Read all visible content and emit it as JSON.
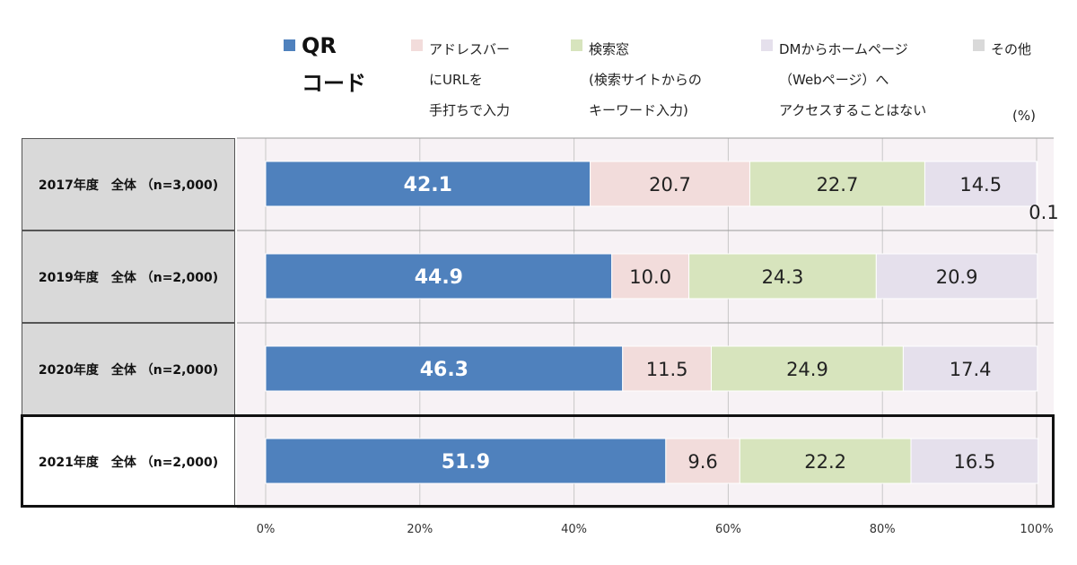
{
  "chart_data": {
    "type": "bar",
    "orientation": "horizontal",
    "stacked": true,
    "categories": [
      "2017年度　全体 （n=3,000)",
      "2019年度　全体 （n=2,000)",
      "2020年度　全体 （n=2,000)",
      "2021年度　全体 （n=2,000)"
    ],
    "highlighted_category_index": 3,
    "unit": "(%)",
    "xlim": [
      0,
      100
    ],
    "x_ticks": [
      "0%",
      "20%",
      "40%",
      "60%",
      "80%",
      "100%"
    ],
    "grid": true,
    "legend_position": "top",
    "series": [
      {
        "name": "QR\nコード",
        "color": "#4f81bd",
        "label_color": "#ffffff",
        "values": [
          42.1,
          44.9,
          46.3,
          51.9
        ],
        "labels": [
          "42.1",
          "44.9",
          "46.3",
          "51.9"
        ]
      },
      {
        "name": "アドレスバー\nにURLを\n手打ちで入力",
        "color": "#f2dcdb",
        "label_color": "#222222",
        "values": [
          20.7,
          10.0,
          11.5,
          9.6
        ],
        "labels": [
          "20.7",
          "10.0",
          "11.5",
          "9.6"
        ]
      },
      {
        "name": "検索窓\n(検索サイトからの\nキーワード入力)",
        "color": "#d7e4bd",
        "label_color": "#222222",
        "values": [
          22.7,
          24.3,
          24.9,
          22.2
        ],
        "labels": [
          "22.7",
          "24.3",
          "24.9",
          "22.2"
        ]
      },
      {
        "name": "DMからホームページ\n（Webページ）へ\nアクセスすることはない",
        "color": "#e5e0ec",
        "label_color": "#222222",
        "values": [
          14.5,
          20.9,
          17.4,
          16.5
        ],
        "labels": [
          "14.5",
          "20.9",
          "17.4",
          "16.5"
        ]
      },
      {
        "name": "その他",
        "color": "#d9d9d9",
        "label_color": "#222222",
        "values": [
          0.1,
          0,
          0,
          0
        ],
        "labels": [
          "0.1",
          "",
          "",
          ""
        ]
      }
    ]
  }
}
